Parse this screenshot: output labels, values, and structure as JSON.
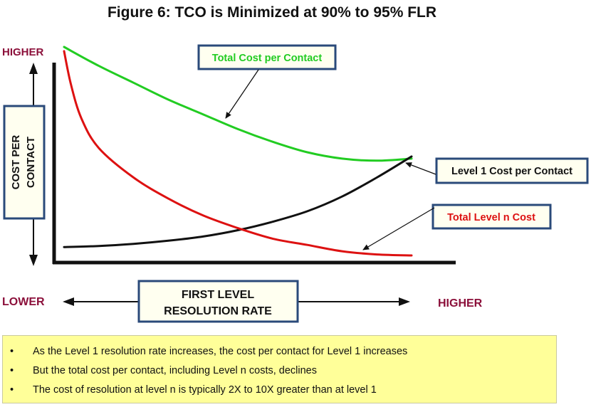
{
  "chart_data": {
    "type": "line",
    "title": "Figure 6: TCO is Minimized at 90% to 95% FLR",
    "xlabel": [
      "FIRST LEVEL",
      "RESOLUTION RATE"
    ],
    "ylabel": [
      "COST PER",
      "CONTACT"
    ],
    "y_high_label": "HIGHER",
    "x_low_label": "LOWER",
    "x_high_label": "HIGHER",
    "series": [
      {
        "name": "Total Cost per Contact",
        "color": "#22cc22",
        "x": [
          0,
          0.1,
          0.2,
          0.3,
          0.4,
          0.5,
          0.6,
          0.7,
          0.8,
          0.9,
          1.0
        ],
        "y": [
          1.0,
          0.91,
          0.83,
          0.75,
          0.68,
          0.61,
          0.55,
          0.5,
          0.47,
          0.46,
          0.47
        ]
      },
      {
        "name": "Level 1 Cost per Contact",
        "color": "#111111",
        "x": [
          0,
          0.1,
          0.2,
          0.3,
          0.4,
          0.5,
          0.6,
          0.7,
          0.8,
          0.9,
          1.0
        ],
        "y": [
          0.05,
          0.055,
          0.065,
          0.08,
          0.1,
          0.13,
          0.17,
          0.22,
          0.29,
          0.38,
          0.48
        ]
      },
      {
        "name": "Total Level n Cost",
        "color": "#dd1111",
        "x": [
          0,
          0.02,
          0.05,
          0.1,
          0.2,
          0.3,
          0.4,
          0.5,
          0.6,
          0.7,
          0.8,
          0.9,
          1.0
        ],
        "y": [
          0.98,
          0.82,
          0.66,
          0.52,
          0.38,
          0.28,
          0.2,
          0.14,
          0.09,
          0.06,
          0.03,
          0.015,
          0.01
        ]
      }
    ],
    "callouts": [
      {
        "text": "Total Cost per Contact",
        "color": "#22cc22"
      },
      {
        "text": "Level 1 Cost per Contact",
        "color": "#111111"
      },
      {
        "text": "Total Level n Cost",
        "color": "#dd1111"
      }
    ]
  },
  "notes": {
    "bullet": "•",
    "items": [
      "As the Level 1 resolution rate increases, the cost per contact for Level 1 increases",
      "But the total cost per contact, including Level n costs, declines",
      "The cost of resolution at level n is typically 2X to 10X greater than at level 1"
    ]
  },
  "colors": {
    "box_border": "#2a4a7a",
    "dark_red": "#8b0f3a",
    "box_fill": "#fffff0",
    "notes_fill": "#ffff99"
  }
}
